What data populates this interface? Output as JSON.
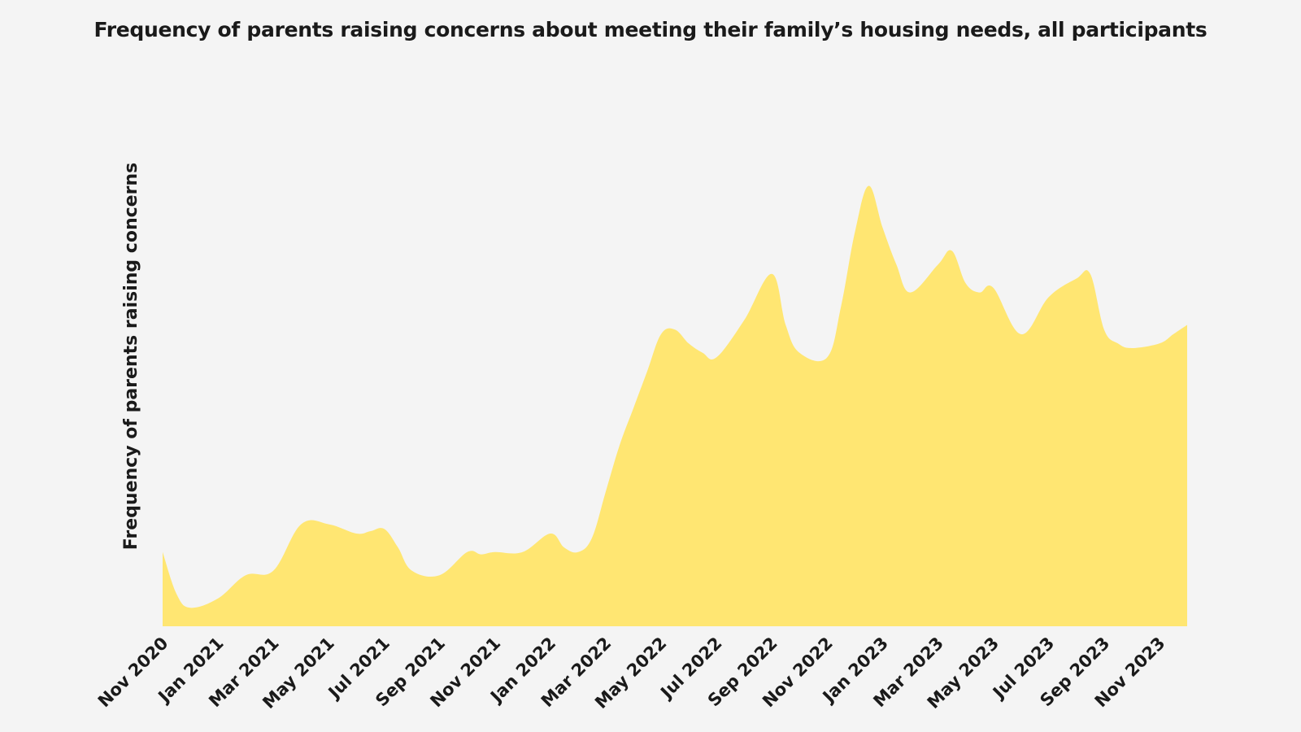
{
  "chart_data": {
    "type": "area",
    "title": "Frequency of parents raising concerns about meeting their family’s housing needs, all participants",
    "ylabel": "Frequency of parents raising concerns",
    "xlabel": "",
    "ylim": [
      0,
      100
    ],
    "grid": false,
    "fill_color": "#ffe672",
    "tick_labels": [
      "Nov 2020",
      "Jan 2021",
      "Mar 2021",
      "May 2021",
      "Jul 2021",
      "Sep 2021",
      "Nov 2021",
      "Jan 2022",
      "Mar 2022",
      "May 2022",
      "Jul 2022",
      "Sep 2022",
      "Nov 2022",
      "Jan 2023",
      "Mar 2023",
      "May 2023",
      "Jul 2023",
      "Sep 2023",
      "Nov 2023"
    ],
    "x": [
      0,
      0.5,
      1,
      2,
      3,
      4,
      5,
      6,
      7,
      7.5,
      8,
      8.5,
      9,
      10,
      11,
      11.5,
      12,
      13,
      14,
      14.5,
      15,
      15.5,
      16,
      16.5,
      17,
      17.5,
      18,
      18.5,
      19,
      19.5,
      20,
      21,
      22,
      22.5,
      23,
      24,
      24.5,
      25,
      25.5,
      26,
      26.5,
      27,
      28,
      28.5,
      29,
      29.5,
      30,
      31,
      32,
      33,
      33.5,
      34,
      34.5,
      35,
      36,
      36.5,
      37
    ],
    "values": [
      16,
      7,
      4,
      6,
      11,
      12,
      22,
      22,
      20,
      20.5,
      21,
      17,
      12,
      11,
      16,
      15.5,
      16,
      16,
      20,
      17,
      16,
      19,
      29,
      39,
      47,
      55,
      63,
      64,
      61,
      59,
      58,
      66,
      76,
      65,
      59,
      58,
      69,
      85,
      95,
      86,
      78,
      72,
      78,
      81,
      74,
      72,
      73,
      63,
      71,
      75,
      76,
      64,
      61,
      60,
      61,
      63,
      65
    ]
  }
}
